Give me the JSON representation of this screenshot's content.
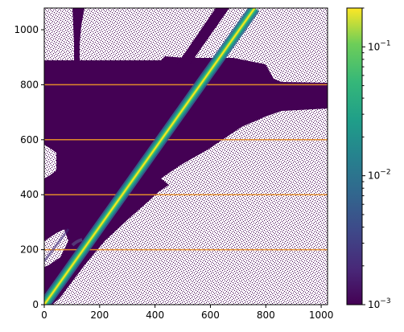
{
  "chart_data": {
    "type": "heatmap",
    "title": "",
    "xlabel": "",
    "ylabel": "",
    "xlim": [
      0,
      1023
    ],
    "ylim": [
      0,
      1079
    ],
    "x_ticks": [
      0,
      200,
      400,
      600,
      800,
      1000
    ],
    "y_ticks": [
      0,
      200,
      400,
      600,
      800,
      1000
    ],
    "colorbar": {
      "scale": "log",
      "range": [
        0.001,
        0.2
      ],
      "colormap": "viridis",
      "tick_labels": [
        {
          "value": 0.001,
          "base": "10",
          "exp": "−3"
        },
        {
          "value": 0.01,
          "base": "10",
          "exp": "−2"
        },
        {
          "value": 0.1,
          "base": "10",
          "exp": "−1"
        }
      ]
    },
    "horizontal_lines": {
      "y": [
        200,
        400,
        600,
        800
      ],
      "color": "#e08a2a"
    },
    "masked_pattern": "white/blank scatter (masked, below 1e-3) surrounding a dark saturated region",
    "diagonal_band": {
      "x": [
        0,
        760
      ],
      "y": [
        0,
        1079
      ],
      "peak_value": 0.2
    },
    "colors": {
      "viridis_low": "#440154",
      "viridis_mid": "#21918c",
      "viridis_high": "#fde725"
    }
  }
}
